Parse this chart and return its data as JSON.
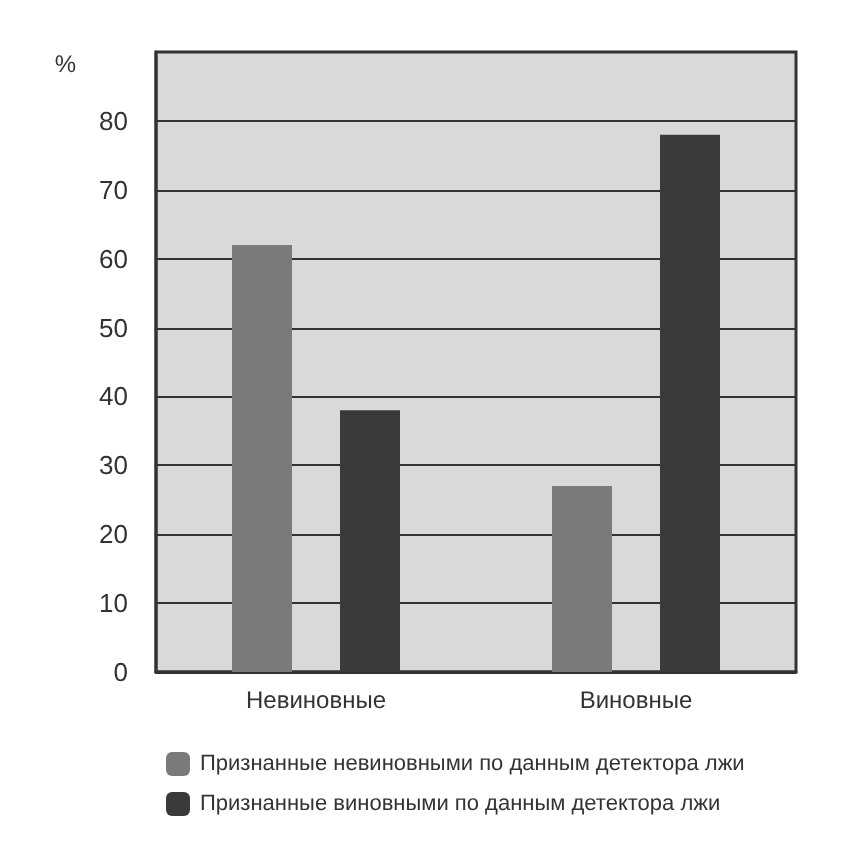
{
  "chart_data": {
    "type": "bar",
    "ylabel": "%",
    "categories": [
      "Невиновные",
      "Виновные"
    ],
    "series": [
      {
        "name": "Признанные невиновными по данным детектора лжи",
        "color": "#7a7a7a",
        "values": [
          62,
          27
        ]
      },
      {
        "name": "Признанные виновными по данным детектора лжи",
        "color": "#3a3a3a",
        "values": [
          38,
          78
        ]
      }
    ],
    "ylim": [
      0,
      90
    ],
    "yticks": [
      0,
      10,
      20,
      30,
      40,
      50,
      60,
      70,
      80
    ],
    "grid": "y",
    "legend": "bottom"
  }
}
